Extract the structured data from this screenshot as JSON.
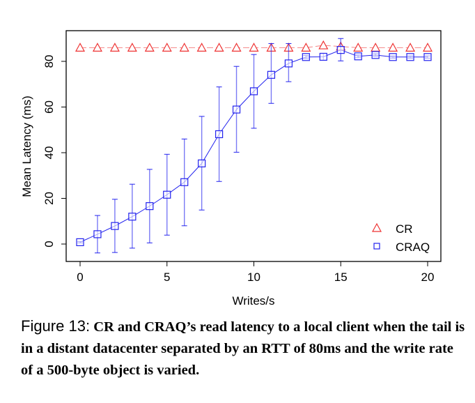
{
  "chart_data": {
    "type": "line",
    "title": "",
    "xlabel": "Writes/s",
    "ylabel": "Mean Latency (ms)",
    "xlim": [
      -0.8,
      20.8
    ],
    "ylim": [
      -7.5,
      93.5
    ],
    "xticks": [
      0,
      5,
      10,
      15,
      20
    ],
    "yticks": [
      0,
      20,
      40,
      60,
      80
    ],
    "grid": false,
    "legend_position": "bottom-right",
    "x": [
      0,
      1,
      2,
      3,
      4,
      5,
      6,
      7,
      8,
      9,
      10,
      11,
      12,
      13,
      14,
      15,
      16,
      17,
      18,
      19,
      20
    ],
    "series": [
      {
        "name": "CR",
        "marker": "triangle",
        "color": "#ee3333",
        "values": [
          86,
          86,
          86,
          86,
          86,
          86,
          86,
          86,
          86,
          86,
          86,
          86,
          86,
          86,
          87,
          86.5,
          86,
          86,
          86,
          86,
          86
        ]
      },
      {
        "name": "CRAQ",
        "marker": "square",
        "color": "#2222ee",
        "values": [
          0.8,
          4.3,
          7.9,
          12,
          16.6,
          21.6,
          27.1,
          35.3,
          48.1,
          58.9,
          66.9,
          74.1,
          79.1,
          81.9,
          82,
          85,
          82.2,
          82.8,
          81.9,
          81.9,
          81.9
        ],
        "err_low": [
          0.5,
          -3.9,
          -3.7,
          -1.8,
          0.5,
          3.9,
          8,
          14.9,
          27.4,
          40.2,
          50.7,
          61.6,
          71.1,
          81.2,
          80.5,
          80.2,
          81.6,
          82.2,
          81.4,
          81.4,
          81.4
        ],
        "err_high": [
          1.1,
          12.5,
          19.6,
          26.2,
          32.7,
          39.3,
          46,
          55.9,
          68.8,
          77.8,
          83,
          87.8,
          87.8,
          82.6,
          83.5,
          90,
          82.8,
          83.4,
          82.4,
          82.4,
          82.4
        ]
      }
    ]
  },
  "caption": {
    "label": "Figure 13:",
    "text": "CR and CRAQ’s read latency to a local client when the tail is in a distant datacenter separated by an RTT of 80ms and the write rate of a 500-byte object is varied."
  }
}
